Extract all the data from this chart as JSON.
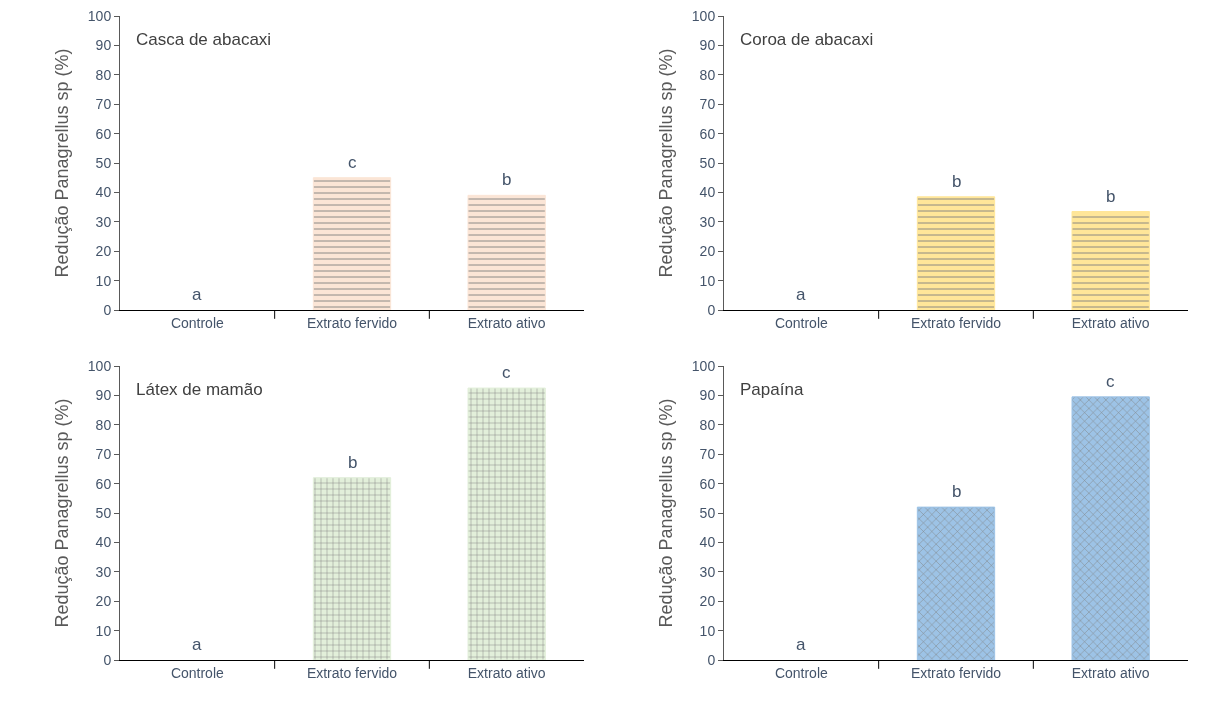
{
  "chart_data": [
    {
      "type": "bar",
      "title": "Casca de abacaxi",
      "ylabel": "Redução Panagrellus sp (%)",
      "categories": [
        "Controle",
        "Extrato fervido",
        "Extrato ativo"
      ],
      "values": [
        0,
        45,
        39
      ],
      "color": "#fbe5d6",
      "ylim": [
        0,
        100
      ],
      "yticks": [
        0,
        10,
        20,
        30,
        40,
        50,
        60,
        70,
        80,
        90,
        100
      ],
      "grid": false,
      "legend": false,
      "annotations": [
        {
          "text": "a",
          "x": "Controle",
          "y": 0
        },
        {
          "text": "c",
          "x": "Extrato fervido",
          "y": 45
        },
        {
          "text": "b",
          "x": "Extrato ativo",
          "y": 39
        }
      ]
    },
    {
      "type": "bar",
      "title": "Coroa de abacaxi",
      "ylabel": "Redução Panagrellus sp (%)",
      "categories": [
        "Controle",
        "Extrato fervido",
        "Extrato ativo"
      ],
      "values": [
        0,
        38.5,
        33.5
      ],
      "color": "#ffe699",
      "ylim": [
        0,
        100
      ],
      "yticks": [
        0,
        10,
        20,
        30,
        40,
        50,
        60,
        70,
        80,
        90,
        100
      ],
      "grid": false,
      "legend": false,
      "annotations": [
        {
          "text": "a",
          "x": "Controle",
          "y": 0
        },
        {
          "text": "b",
          "x": "Extrato fervido",
          "y": 38.5
        },
        {
          "text": "b",
          "x": "Extrato ativo",
          "y": 33.5
        }
      ]
    },
    {
      "type": "bar",
      "title": "Látex de mamão",
      "ylabel": "Redução Panagrellus sp (%)",
      "categories": [
        "Controle",
        "Extrato fervido",
        "Extrato ativo"
      ],
      "values": [
        0,
        62,
        92.5
      ],
      "color": "#e2efda",
      "ylim": [
        0,
        100
      ],
      "yticks": [
        0,
        10,
        20,
        30,
        40,
        50,
        60,
        70,
        80,
        90,
        100
      ],
      "grid": false,
      "legend": false,
      "annotations": [
        {
          "text": "a",
          "x": "Controle",
          "y": 0
        },
        {
          "text": "b",
          "x": "Extrato fervido",
          "y": 62
        },
        {
          "text": "c",
          "x": "Extrato ativo",
          "y": 92.5
        }
      ]
    },
    {
      "type": "bar",
      "title": "Papaína",
      "ylabel": "Redução Panagrellus sp (%)",
      "categories": [
        "Controle",
        "Extrato fervido",
        "Extrato ativo"
      ],
      "values": [
        0,
        52,
        89.5
      ],
      "color": "#9dc3e6",
      "ylim": [
        0,
        100
      ],
      "yticks": [
        0,
        10,
        20,
        30,
        40,
        50,
        60,
        70,
        80,
        90,
        100
      ],
      "grid": false,
      "legend": false,
      "annotations": [
        {
          "text": "a",
          "x": "Controle",
          "y": 0
        },
        {
          "text": "b",
          "x": "Extrato fervido",
          "y": 52
        },
        {
          "text": "c",
          "x": "Extrato ativo",
          "y": 89.5
        }
      ]
    }
  ]
}
